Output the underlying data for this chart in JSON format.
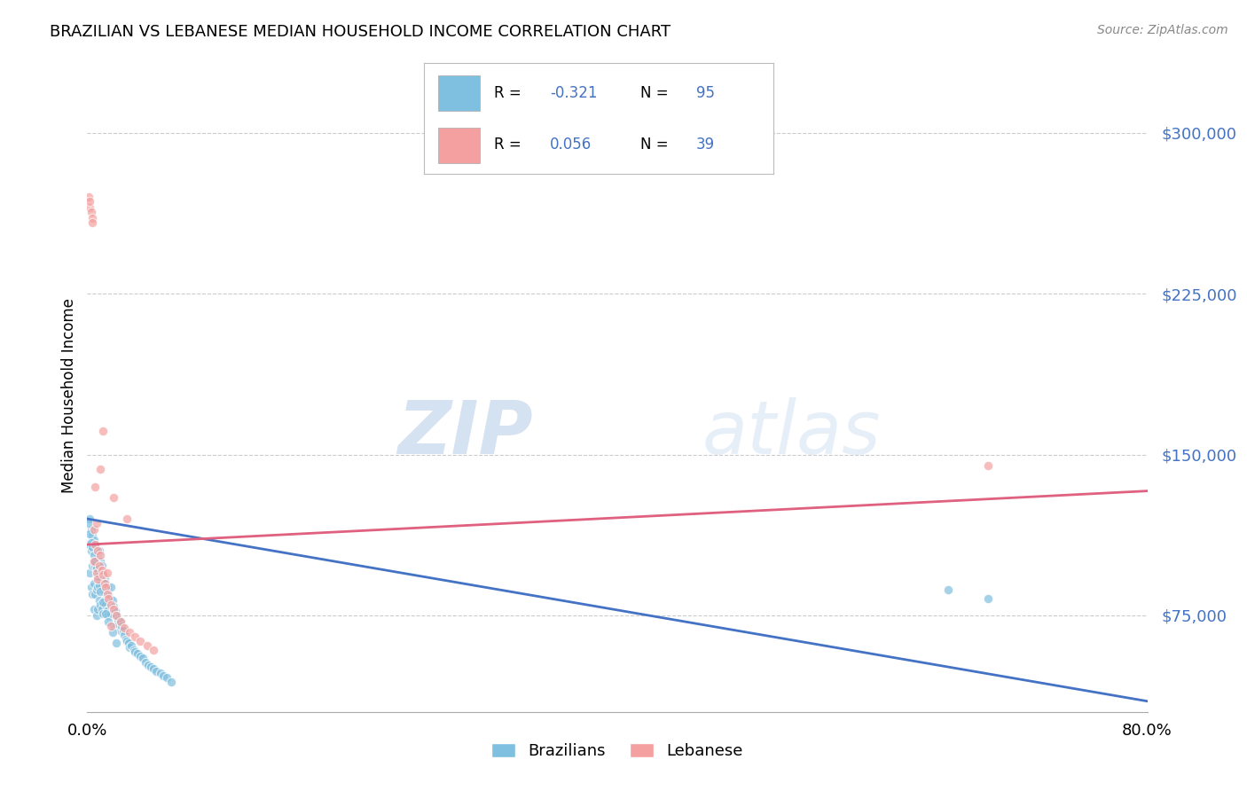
{
  "title": "BRAZILIAN VS LEBANESE MEDIAN HOUSEHOLD INCOME CORRELATION CHART",
  "source": "Source: ZipAtlas.com",
  "ylabel": "Median Household Income",
  "xlim": [
    0.0,
    0.8
  ],
  "ylim": [
    30000,
    325000
  ],
  "yticks": [
    75000,
    150000,
    225000,
    300000
  ],
  "ytick_labels": [
    "$75,000",
    "$150,000",
    "$225,000",
    "$300,000"
  ],
  "xticks": [
    0.0,
    0.1,
    0.2,
    0.3,
    0.4,
    0.5,
    0.6,
    0.7,
    0.8
  ],
  "xtick_labels": [
    "0.0%",
    "",
    "",
    "",
    "",
    "",
    "",
    "",
    "80.0%"
  ],
  "brazil_color": "#7fbfdf",
  "lebanon_color": "#f4a0a0",
  "brazil_line_color": "#4472c4",
  "lebanon_line_color": "#e06080",
  "brazil_R": -0.321,
  "brazil_N": 95,
  "lebanon_R": 0.056,
  "lebanon_N": 39,
  "watermark_zip": "ZIP",
  "watermark_atlas": "atlas",
  "legend_label_brazil": "Brazilians",
  "legend_label_lebanon": "Lebanese",
  "brazil_points_x": [
    0.001,
    0.002,
    0.002,
    0.003,
    0.003,
    0.003,
    0.004,
    0.004,
    0.004,
    0.005,
    0.005,
    0.005,
    0.005,
    0.006,
    0.006,
    0.006,
    0.007,
    0.007,
    0.007,
    0.007,
    0.008,
    0.008,
    0.008,
    0.008,
    0.009,
    0.009,
    0.009,
    0.01,
    0.01,
    0.01,
    0.011,
    0.011,
    0.011,
    0.012,
    0.012,
    0.012,
    0.013,
    0.013,
    0.014,
    0.014,
    0.015,
    0.015,
    0.016,
    0.016,
    0.017,
    0.018,
    0.018,
    0.019,
    0.02,
    0.02,
    0.021,
    0.022,
    0.023,
    0.024,
    0.025,
    0.025,
    0.026,
    0.027,
    0.028,
    0.029,
    0.03,
    0.031,
    0.032,
    0.033,
    0.035,
    0.036,
    0.038,
    0.04,
    0.042,
    0.044,
    0.046,
    0.048,
    0.05,
    0.052,
    0.055,
    0.057,
    0.06,
    0.063,
    0.001,
    0.002,
    0.003,
    0.004,
    0.005,
    0.006,
    0.007,
    0.008,
    0.009,
    0.01,
    0.012,
    0.014,
    0.016,
    0.019,
    0.022,
    0.65,
    0.68
  ],
  "brazil_points_y": [
    108000,
    120000,
    95000,
    115000,
    105000,
    88000,
    112000,
    98000,
    85000,
    110000,
    100000,
    90000,
    78000,
    108000,
    98000,
    85000,
    105000,
    95000,
    87000,
    75000,
    103000,
    95000,
    88000,
    78000,
    105000,
    94000,
    82000,
    100000,
    91000,
    80000,
    98000,
    89000,
    78000,
    95000,
    87000,
    76000,
    92000,
    82000,
    90000,
    80000,
    88000,
    77000,
    85000,
    75000,
    83000,
    88000,
    76000,
    82000,
    79000,
    70000,
    77000,
    75000,
    73000,
    71000,
    72000,
    68000,
    70000,
    68000,
    66000,
    64000,
    63000,
    62000,
    60000,
    61000,
    59000,
    58000,
    57000,
    56000,
    55000,
    53000,
    52000,
    51000,
    50000,
    49000,
    48000,
    47000,
    46000,
    44000,
    118000,
    113000,
    109000,
    107000,
    103000,
    100000,
    97000,
    93000,
    89000,
    86000,
    81000,
    76000,
    72000,
    67000,
    62000,
    87000,
    83000
  ],
  "lebanon_points_x": [
    0.001,
    0.002,
    0.002,
    0.003,
    0.004,
    0.004,
    0.005,
    0.005,
    0.006,
    0.006,
    0.007,
    0.007,
    0.008,
    0.008,
    0.009,
    0.01,
    0.011,
    0.012,
    0.013,
    0.014,
    0.015,
    0.016,
    0.018,
    0.02,
    0.022,
    0.025,
    0.028,
    0.032,
    0.036,
    0.04,
    0.045,
    0.05,
    0.68,
    0.01,
    0.02,
    0.03,
    0.012,
    0.015,
    0.018
  ],
  "lebanon_points_y": [
    270000,
    265000,
    268000,
    263000,
    260000,
    258000,
    115000,
    100000,
    135000,
    108000,
    118000,
    95000,
    105000,
    92000,
    98000,
    103000,
    96000,
    94000,
    90000,
    88000,
    85000,
    83000,
    80000,
    78000,
    75000,
    72000,
    69000,
    67000,
    65000,
    63000,
    61000,
    59000,
    145000,
    143000,
    130000,
    120000,
    161000,
    95000,
    70000
  ]
}
